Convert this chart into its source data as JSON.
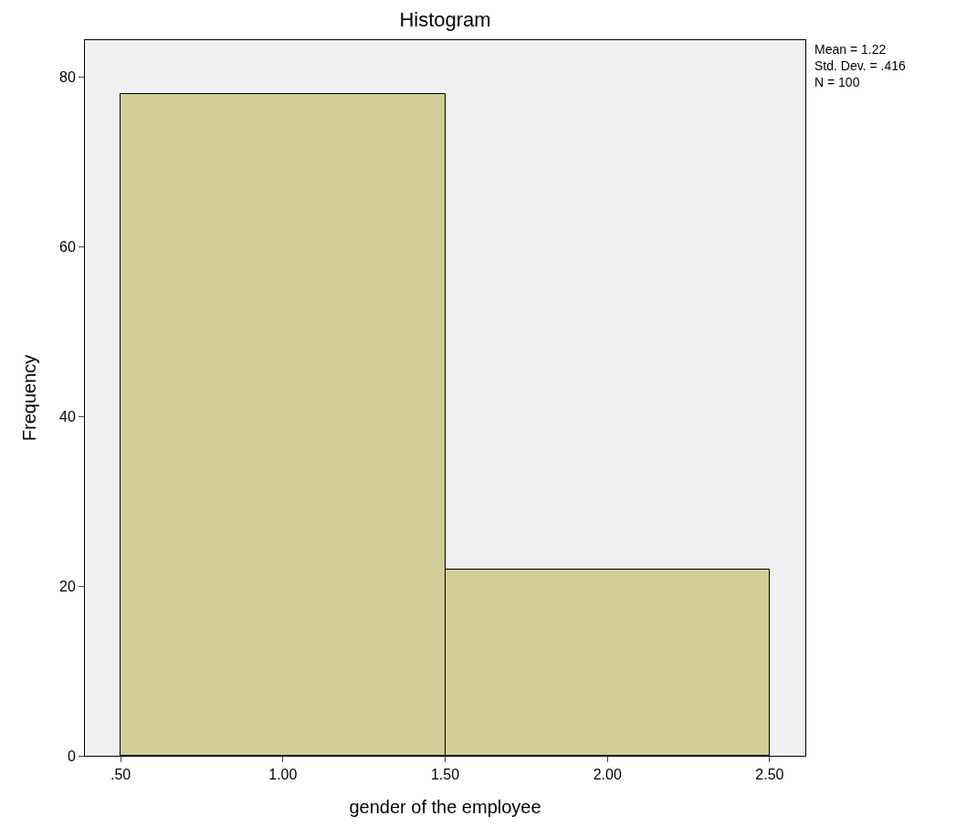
{
  "chart_data": {
    "type": "histogram",
    "title": "Histogram",
    "xlabel": "gender of the employee",
    "ylabel": "Frequency",
    "bins": [
      0.5,
      1.5,
      2.5
    ],
    "values": [
      78,
      22
    ],
    "color": "#d2cc96",
    "xlim": [
      0.39,
      2.61
    ],
    "xticks": [
      {
        "value": 0.5,
        "label": ".50"
      },
      {
        "value": 1,
        "label": "1.00"
      },
      {
        "value": 1.5,
        "label": "1.50"
      },
      {
        "value": 2,
        "label": "2.00"
      },
      {
        "value": 2.5,
        "label": "2.50"
      }
    ],
    "ylim": [
      0,
      84.4
    ],
    "yticks": [
      0,
      20,
      40,
      60,
      80
    ],
    "grid": false,
    "annotations": [
      "Mean = 1.22\nStd. Dev. = .416\nN = 100"
    ]
  }
}
